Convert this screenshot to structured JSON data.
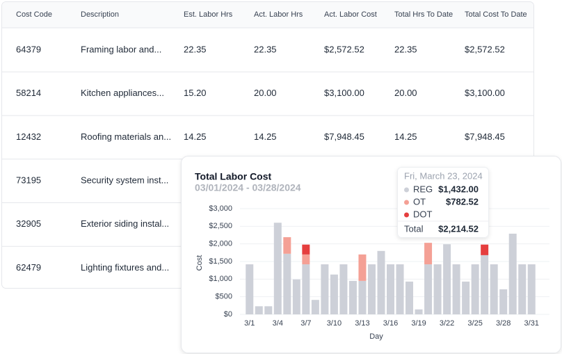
{
  "table": {
    "headers": [
      "Cost Code",
      "Description",
      "Est. Labor Hrs",
      "Act. Labor Hrs",
      "Act. Labor Cost",
      "Total Hrs To Date",
      "Total Cost To Date"
    ],
    "rows": [
      [
        "64379",
        "Framing labor and...",
        "22.35",
        "22.35",
        "$2,572.52",
        "22.35",
        "$2,572.52"
      ],
      [
        "58214",
        "Kitchen appliances...",
        "15.20",
        "20.00",
        "$3,100.00",
        "20.00",
        "$3,100.00"
      ],
      [
        "12432",
        "Roofing materials an...",
        "14.25",
        "14.25",
        "$7,948.45",
        "14.25",
        "$7,948.45"
      ],
      [
        "73195",
        "Security system inst..."
      ],
      [
        "32905",
        "Exterior siding instal..."
      ],
      [
        "62479",
        "Lighting fixtures and..."
      ]
    ]
  },
  "chart_data": {
    "type": "stacked_bar",
    "title": "Total Labor Cost",
    "subtitle": "03/01/2024 - 03/28/2024",
    "x_label": "Day",
    "y_label": "Cost",
    "categories": [
      "3/1",
      null,
      null,
      "3/4",
      null,
      null,
      "3/7",
      null,
      null,
      "3/10",
      null,
      null,
      "3/13",
      null,
      null,
      "3/16",
      null,
      null,
      "3/19",
      null,
      null,
      "3/22",
      null,
      null,
      "3/25",
      null,
      null,
      "3/28",
      null,
      null,
      "3/31"
    ],
    "series": [
      {
        "name": "REG",
        "color": "#cdd0d8",
        "values": [
          1420,
          230,
          230,
          2600,
          1720,
          990,
          1420,
          410,
          1420,
          1130,
          1420,
          950,
          950,
          1420,
          1800,
          1420,
          1420,
          930,
          140,
          1420,
          1420,
          1990,
          1420,
          930,
          1420,
          1680,
          1420,
          710,
          2290,
          1420,
          1420
        ]
      },
      {
        "name": "OT",
        "color": "#f4a095",
        "values": [
          0,
          0,
          0,
          0,
          470,
          0,
          280,
          0,
          0,
          0,
          0,
          0,
          750,
          0,
          0,
          0,
          0,
          0,
          0,
          610,
          0,
          0,
          0,
          0,
          0,
          0,
          0,
          0,
          0,
          0,
          0
        ]
      },
      {
        "name": "DOT",
        "color": "#e53e3e",
        "values": [
          0,
          0,
          0,
          0,
          0,
          0,
          280,
          0,
          0,
          0,
          0,
          0,
          0,
          0,
          0,
          0,
          0,
          0,
          0,
          0,
          0,
          0,
          0,
          0,
          0,
          300,
          0,
          0,
          0,
          0,
          0
        ]
      }
    ],
    "ylim": [
      0,
      3000
    ],
    "yticks": [
      {
        "value": 0,
        "label": "$0"
      },
      {
        "value": 500,
        "label": "$500"
      },
      {
        "value": 1000,
        "label": "$1,000"
      },
      {
        "value": 1500,
        "label": "$1,500"
      },
      {
        "value": 2000,
        "label": "$2,000"
      },
      {
        "value": 2500,
        "label": "$2,500"
      },
      {
        "value": 3000,
        "label": "$3,000"
      }
    ],
    "grid": true
  },
  "tooltip": {
    "date": "Fri, March 23, 2024",
    "values": [
      "$1,432.00",
      "$782.52"
    ],
    "total_label": "Total",
    "total": "$2,214.52"
  }
}
